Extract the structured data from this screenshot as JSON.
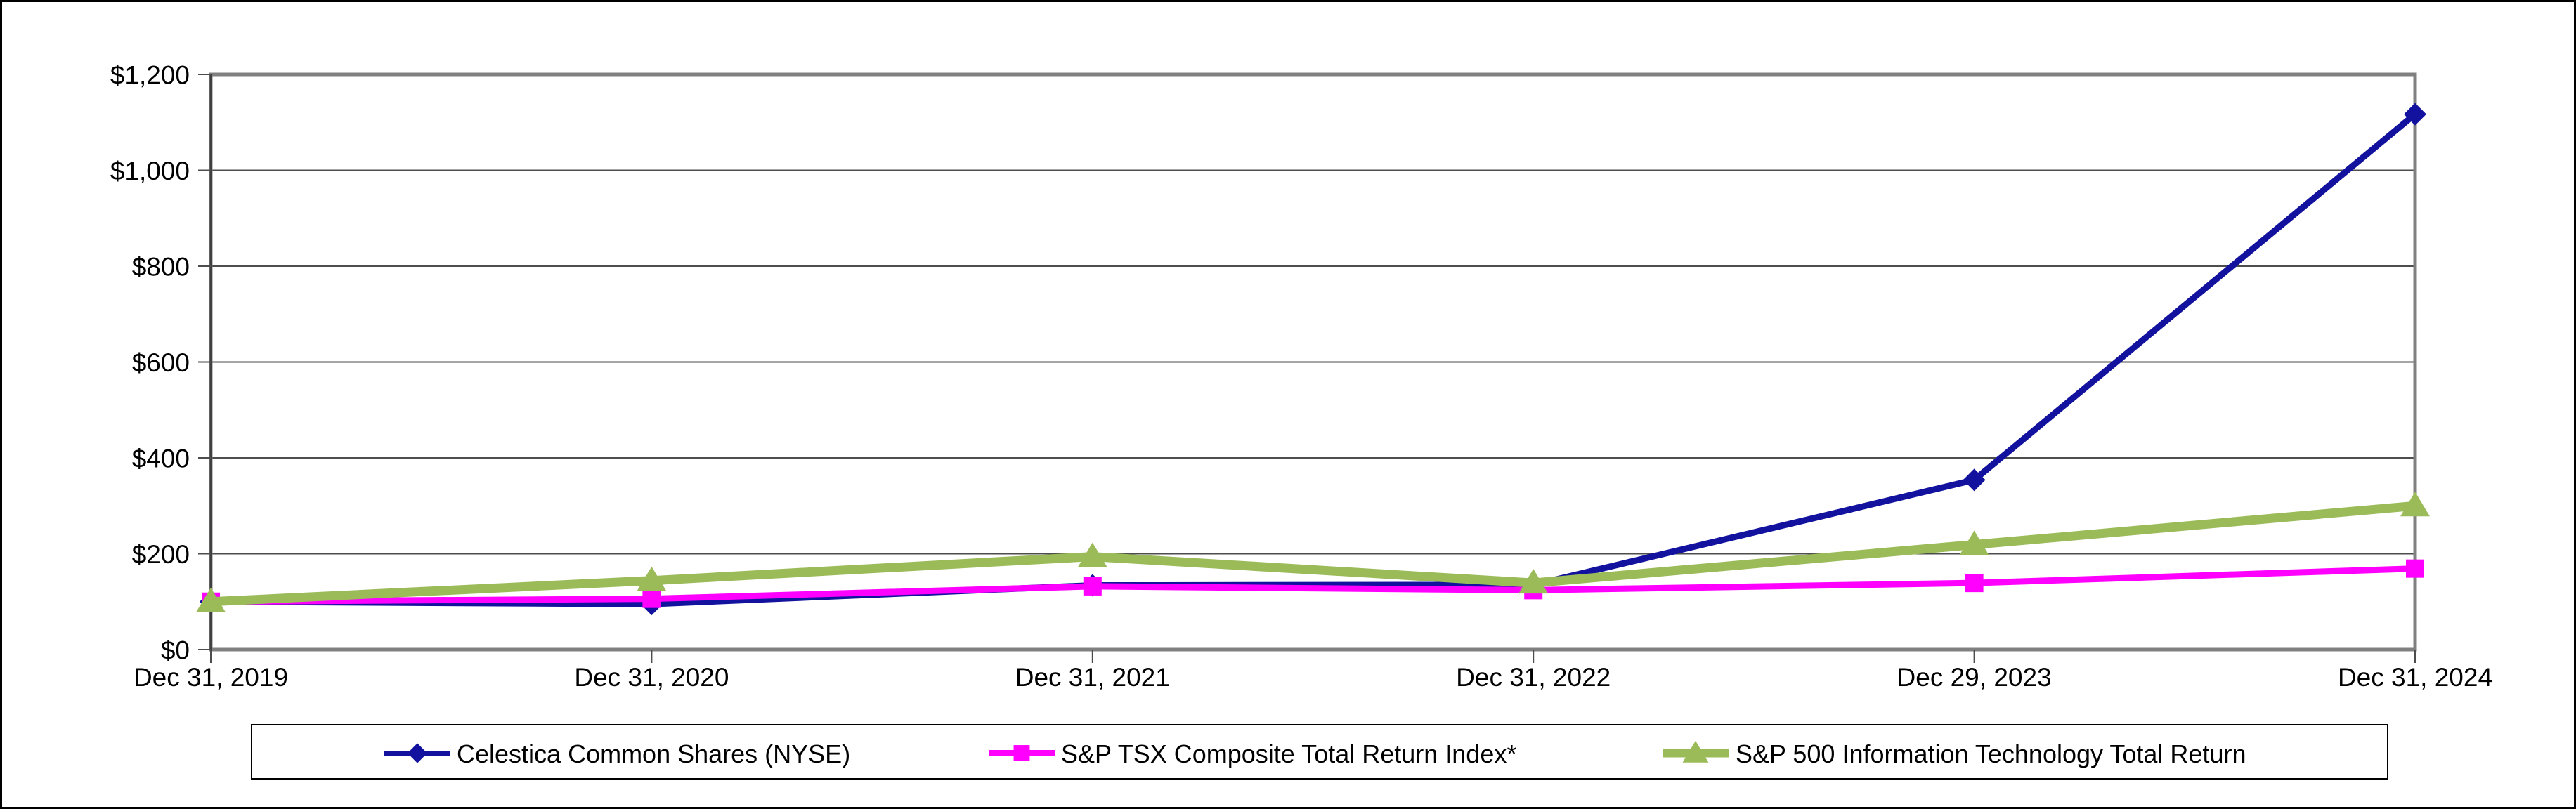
{
  "chart_data": {
    "type": "line",
    "title": "",
    "xlabel": "",
    "ylabel": "",
    "ylim": [
      0,
      1200
    ],
    "y_tick_step": 200,
    "grid": "horizontal",
    "legend_position": "bottom",
    "x_categories": [
      "Dec 31, 2019",
      "Dec 31, 2020",
      "Dec 31, 2021",
      "Dec 31, 2022",
      "Dec 29, 2023",
      "Dec 31, 2024"
    ],
    "y_ticks": [
      {
        "value": 0,
        "label": "$0"
      },
      {
        "value": 200,
        "label": "$200"
      },
      {
        "value": 400,
        "label": "$400"
      },
      {
        "value": 600,
        "label": "$600"
      },
      {
        "value": 800,
        "label": "$800"
      },
      {
        "value": 1000,
        "label": "$1,000"
      },
      {
        "value": 1200,
        "label": "$1,200"
      }
    ],
    "series": [
      {
        "name": "Celestica Common Shares (NYSE)",
        "marker": "diamond",
        "color": "#12129E",
        "values": [
          100,
          95,
          134,
          135,
          354,
          1117
        ]
      },
      {
        "name": "S&P TSX Composite Total Return Index*",
        "marker": "square",
        "color": "#FF00FF",
        "values": [
          100,
          106,
          132,
          124,
          139,
          169
        ]
      },
      {
        "name": "S&P 500 Information Technology Total Return",
        "marker": "triangle",
        "color": "#9BBB59",
        "values": [
          100,
          144,
          194,
          139,
          219,
          300
        ]
      }
    ]
  },
  "style_colors": {
    "gridline": "#4D4D4D",
    "plot_border": "#808080",
    "axis_line": "#404040",
    "outer_border": "#000000",
    "background": "#FFFFFF"
  }
}
